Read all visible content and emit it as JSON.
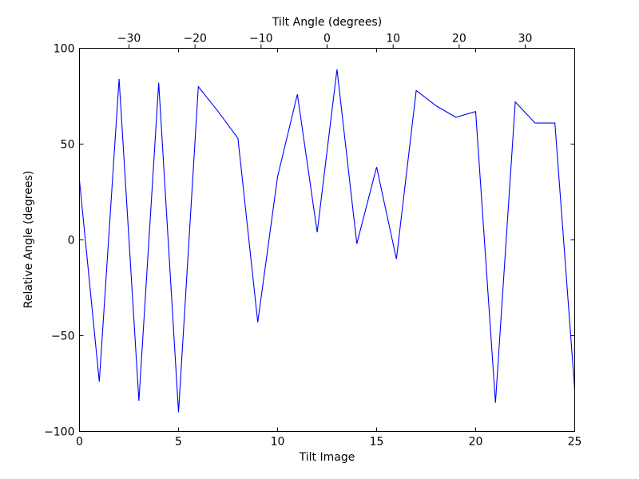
{
  "chart_data": {
    "type": "line",
    "xlabel": "Tilt Image",
    "ylabel": "Relative Angle (degrees)",
    "x2label": "Tilt Angle (degrees)",
    "xlim": [
      0,
      25
    ],
    "ylim": [
      -100,
      100
    ],
    "x2lim": [
      -37.5,
      37.5
    ],
    "xticks": [
      0,
      5,
      10,
      15,
      20,
      25
    ],
    "yticks": [
      -100,
      -50,
      0,
      50,
      100
    ],
    "x2ticks": [
      -30,
      -20,
      -10,
      0,
      10,
      20,
      30
    ],
    "xtick_labels": [
      "0",
      "5",
      "10",
      "15",
      "20",
      "25"
    ],
    "ytick_labels": [
      "−100",
      "−50",
      "0",
      "50",
      "100"
    ],
    "x2tick_labels": [
      "−30",
      "−20",
      "−10",
      "0",
      "10",
      "20",
      "30"
    ],
    "grid": false,
    "series": [
      {
        "color": "#0000ff",
        "x": [
          0,
          1,
          2,
          3,
          4,
          5,
          6,
          7,
          8,
          9,
          10,
          11,
          12,
          13,
          14,
          15,
          16,
          17,
          18,
          19,
          20,
          21,
          22,
          23,
          24,
          25
        ],
        "y": [
          31,
          -74,
          84,
          -84,
          82,
          -90,
          80,
          67,
          53,
          -43,
          33,
          76,
          4,
          89,
          -2,
          38,
          -10,
          78,
          70,
          64,
          67,
          -85,
          72,
          61,
          61,
          -78
        ]
      }
    ]
  }
}
